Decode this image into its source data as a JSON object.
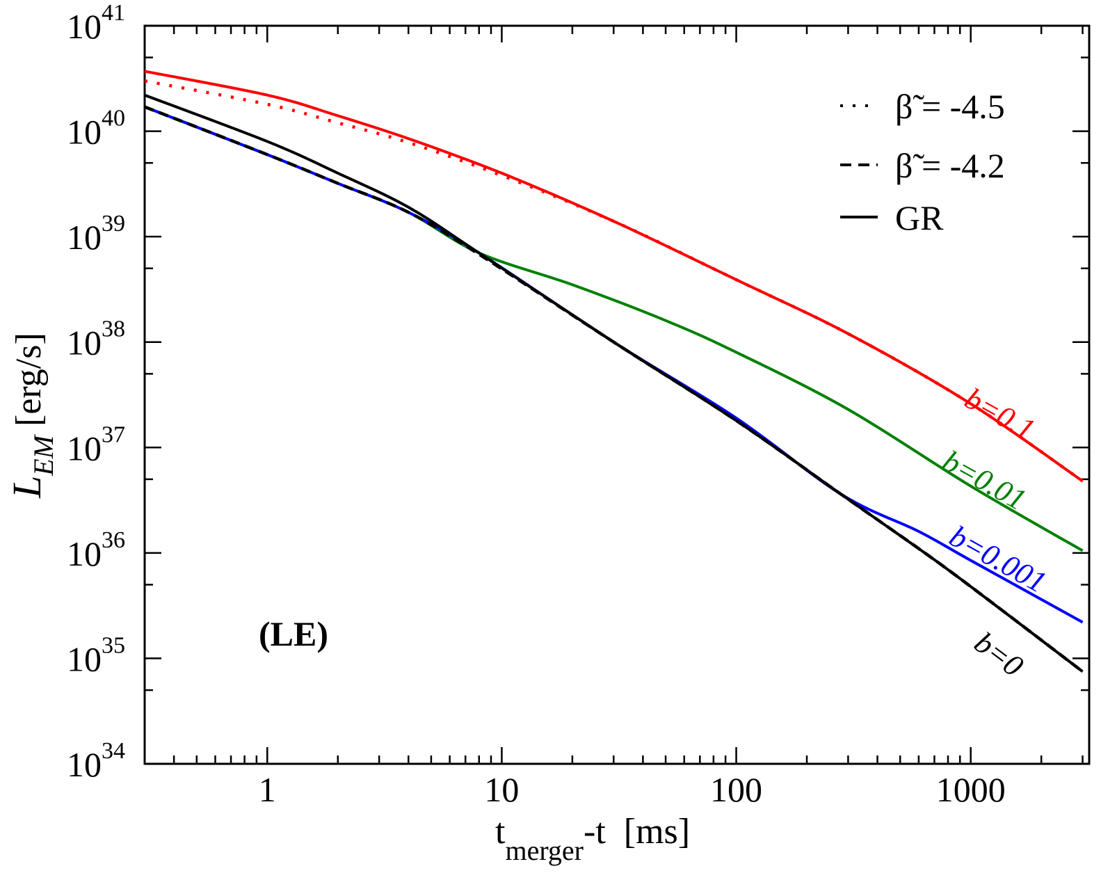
{
  "chart_data": {
    "type": "line",
    "panel_label": "(LE)",
    "xlabel": {
      "main": "t",
      "sub": "merger",
      "rest": "-t  [ms]"
    },
    "ylabel": {
      "main": "L",
      "sub": "EM",
      "rest": " [erg/s]"
    },
    "xscale": "log",
    "yscale": "log",
    "xlim": [
      0.3,
      3200
    ],
    "ylim": [
      1e+34,
      1e+41
    ],
    "x_ticks": [
      {
        "value": 1,
        "label": "1"
      },
      {
        "value": 10,
        "label": "10"
      },
      {
        "value": 100,
        "label": "100"
      },
      {
        "value": 1000,
        "label": "1000"
      }
    ],
    "y_ticks": [
      {
        "value": 1e+34,
        "base": "10",
        "exp": "34"
      },
      {
        "value": 1e+35,
        "base": "10",
        "exp": "35"
      },
      {
        "value": 1e+36,
        "base": "10",
        "exp": "36"
      },
      {
        "value": 1e+37,
        "base": "10",
        "exp": "37"
      },
      {
        "value": 1e+38,
        "base": "10",
        "exp": "38"
      },
      {
        "value": 1e+39,
        "base": "10",
        "exp": "39"
      },
      {
        "value": 1e+40,
        "base": "10",
        "exp": "40"
      },
      {
        "value": 1e+41,
        "base": "10",
        "exp": "41"
      }
    ],
    "legend": {
      "position": "top-right",
      "entries": [
        {
          "style": "dotted",
          "symbol": "β̃",
          "label": " = -4.5"
        },
        {
          "style": "dashed",
          "symbol": "β̃",
          "label": " = -4.2"
        },
        {
          "style": "solid",
          "symbol": "",
          "label": "GR"
        }
      ]
    },
    "colors": {
      "b=0.1": "#ff0000",
      "b=0.01": "#008000",
      "b=0.001": "#0000ff",
      "b=0": "#000000"
    },
    "curve_labels": [
      {
        "text": "b=0.1",
        "color": "#ff0000"
      },
      {
        "text": "b=0.01",
        "color": "#008000"
      },
      {
        "text": "b=0.001",
        "color": "#0000ff"
      },
      {
        "text": "b=0",
        "color": "#000000"
      }
    ],
    "series": [
      {
        "name": "b=0.1 GR",
        "color": "#ff0000",
        "style": "solid",
        "x": [
          0.3,
          1,
          2,
          4,
          10,
          30,
          100,
          300,
          1000,
          3000
        ],
        "y": [
          3.7e+40,
          2.2e+40,
          1.4e+40,
          8.5e+39,
          4e+39,
          1.4e+39,
          3.9e+38,
          1.2e+38,
          2.6e+37,
          4.8e+36
        ]
      },
      {
        "name": "b=0.1 beta=-4.5",
        "color": "#ff0000",
        "style": "dotted",
        "x": [
          0.3,
          1,
          2,
          4,
          10,
          30,
          100,
          300,
          1000,
          3000
        ],
        "y": [
          3e+40,
          1.8e+40,
          1.2e+40,
          7.8e+39,
          3.8e+39,
          1.4e+39,
          3.9e+38,
          1.2e+38,
          2.6e+37,
          4.8e+36
        ]
      },
      {
        "name": "b=0.01",
        "color": "#008000",
        "style": "solid",
        "x": [
          0.3,
          1,
          2,
          4,
          8,
          20,
          50,
          100,
          300,
          1000,
          3000
        ],
        "y": [
          1.7e+40,
          6e+39,
          3.2e+39,
          1.7e+39,
          7e+38,
          3.5e+38,
          1.6e+38,
          8e+37,
          2.3e+37,
          4.3e+36,
          1.05e+36
        ]
      },
      {
        "name": "b=0.001",
        "color": "#0000ff",
        "style": "solid",
        "x": [
          0.3,
          1,
          2,
          4,
          8,
          30,
          100,
          280,
          600,
          1000,
          3000
        ],
        "y": [
          1.7e+40,
          6e+39,
          3.2e+39,
          1.7e+39,
          7e+38,
          1e+38,
          1.9e+37,
          3.6e+36,
          1.6e+36,
          8.5e+35,
          2.2e+35
        ]
      },
      {
        "name": "b=0 GR",
        "color": "#000000",
        "style": "solid",
        "x": [
          0.3,
          1,
          2,
          4,
          8,
          30,
          100,
          280,
          600,
          1000,
          3000
        ],
        "y": [
          2.2e+40,
          8e+39,
          4e+39,
          1.9e+39,
          7e+38,
          1e+38,
          1.8e+37,
          3.6e+36,
          1.1e+36,
          4.8e+35,
          7.5e+34
        ]
      },
      {
        "name": "b=0 beta=-4.2",
        "color": "#000000",
        "style": "dashed",
        "x": [
          0.3,
          1,
          2,
          4,
          8,
          30,
          100,
          280,
          600,
          1000,
          3000
        ],
        "y": [
          1.7e+40,
          6e+39,
          3.2e+39,
          1.7e+39,
          6.8e+38,
          1e+38,
          1.8e+37,
          3.6e+36,
          1.1e+36,
          4.8e+35,
          7.5e+34
        ]
      }
    ]
  }
}
